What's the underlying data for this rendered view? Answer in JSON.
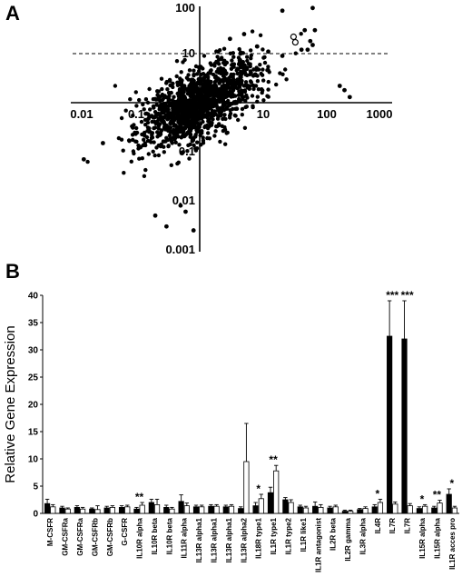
{
  "chart_data": [
    {
      "panel": "A",
      "type": "scatter",
      "scale": "log-log",
      "xlim": [
        0.01,
        1000
      ],
      "ylim": [
        0.001,
        100
      ],
      "x_ticks": [
        "0.01",
        "0.1",
        "1",
        "10",
        "100",
        "1000"
      ],
      "y_ticks": [
        "100",
        "10",
        "1",
        "0.1",
        "0.01",
        "0.001"
      ],
      "threshold_y": 10,
      "threshold_style": "dashed",
      "bulk_cloud": {
        "center": [
          1,
          1
        ],
        "spread_log10": 0.45,
        "correlation": 0.6,
        "approx_points": 1400
      },
      "highlighted_points": [
        {
          "x": 20,
          "y": 75,
          "marker": "filled"
        },
        {
          "x": 60,
          "y": 85,
          "marker": "filled"
        },
        {
          "x": 30,
          "y": 22,
          "marker": "open"
        },
        {
          "x": 32,
          "y": 17,
          "marker": "open"
        },
        {
          "x": 45,
          "y": 30,
          "marker": "filled"
        },
        {
          "x": 55,
          "y": 18,
          "marker": "filled"
        },
        {
          "x": 65,
          "y": 30,
          "marker": "filled"
        },
        {
          "x": 40,
          "y": 12,
          "marker": "filled"
        },
        {
          "x": 50,
          "y": 12,
          "marker": "filled"
        },
        {
          "x": 60,
          "y": 15,
          "marker": "filled"
        },
        {
          "x": 160,
          "y": 2.2,
          "marker": "filled"
        },
        {
          "x": 190,
          "y": 1.8,
          "marker": "filled"
        },
        {
          "x": 230,
          "y": 1.3,
          "marker": "filled"
        },
        {
          "x": 20,
          "y": 9,
          "marker": "filled"
        },
        {
          "x": 12,
          "y": 11,
          "marker": "filled"
        },
        {
          "x": 8,
          "y": 14,
          "marker": "filled"
        },
        {
          "x": 5,
          "y": 25,
          "marker": "filled"
        },
        {
          "x": 3,
          "y": 20,
          "marker": "filled"
        },
        {
          "x": 0.3,
          "y": 0.003,
          "marker": "filled"
        },
        {
          "x": 0.2,
          "y": 0.005,
          "marker": "filled"
        },
        {
          "x": 0.5,
          "y": 0.008,
          "marker": "filled"
        },
        {
          "x": 0.8,
          "y": 0.0025,
          "marker": "filled"
        },
        {
          "x": 0.6,
          "y": 0.006,
          "marker": "filled"
        },
        {
          "x": 0.015,
          "y": 0.07,
          "marker": "filled"
        },
        {
          "x": 0.03,
          "y": 0.15,
          "marker": "filled"
        }
      ]
    },
    {
      "panel": "B",
      "type": "bar",
      "ylabel": "Relative Gene Expression",
      "ylim": [
        0,
        40
      ],
      "yticks": [
        "0",
        "5",
        "10",
        "15",
        "20",
        "25",
        "30",
        "35",
        "40"
      ],
      "categories": [
        "M-CSFR",
        "GM-CSFRa",
        "GM-CSFRa",
        "GM-CSFRb",
        "GM-CSFRb",
        "G-CSFR",
        "IL10R alpha",
        "IL10R beta",
        "IL10R beta",
        "IL11R alpha",
        "IL13R alpha1",
        "IL13R alpha1",
        "IL13R alpha1",
        "IL13R alpha2",
        "IL18R type1",
        "IL1R type1",
        "IL1R type2",
        "IL1R like1",
        "IL1R antagonist",
        "IL2R beta",
        "IL2R gamma",
        "IL3R alpha",
        "IL4R",
        "IL7R",
        "IL7R",
        "IL15R alpha",
        "IL15R alpha",
        "IL1R acces pro"
      ],
      "series": [
        {
          "fill": "#000000",
          "values": [
            1.8,
            1.0,
            1.1,
            0.8,
            1.0,
            1.1,
            0.8,
            2.0,
            1.1,
            2.2,
            1.2,
            1.3,
            1.2,
            0.9,
            1.4,
            3.8,
            2.5,
            1.2,
            1.3,
            1.0,
            0.4,
            0.7,
            1.2,
            32.5,
            32.0,
            0.9,
            1.0,
            3.5
          ],
          "errors": [
            0.8,
            0.3,
            0.3,
            0.2,
            0.3,
            0.3,
            0.3,
            0.6,
            0.4,
            1.2,
            0.3,
            0.3,
            0.3,
            0.3,
            0.6,
            1.0,
            0.4,
            0.3,
            0.8,
            0.3,
            0.2,
            0.2,
            0.4,
            6.5,
            7.0,
            0.3,
            0.3,
            1.0
          ]
        },
        {
          "fill": "#ffffff",
          "values": [
            1.2,
            0.8,
            0.8,
            0.7,
            1.1,
            1.2,
            1.5,
            1.6,
            0.8,
            1.4,
            1.2,
            1.3,
            1.3,
            9.5,
            2.7,
            7.8,
            2.0,
            1.0,
            1.1,
            1.2,
            0.4,
            0.9,
            2.0,
            1.7,
            1.4,
            1.3,
            1.9,
            1.0
          ],
          "errors": [
            0.4,
            0.2,
            0.3,
            0.7,
            0.3,
            0.3,
            0.5,
            1.0,
            0.3,
            0.5,
            0.3,
            0.3,
            0.3,
            7.0,
            0.8,
            1.0,
            0.5,
            0.3,
            0.5,
            0.3,
            0.2,
            0.3,
            0.6,
            0.4,
            0.4,
            0.3,
            0.5,
            0.3
          ]
        }
      ],
      "annotations": [
        {
          "index": 6,
          "text": "**"
        },
        {
          "index": 14,
          "text": "*"
        },
        {
          "index": 15,
          "text": "**"
        },
        {
          "index": 22,
          "text": "*"
        },
        {
          "index": 23,
          "text": "***"
        },
        {
          "index": 24,
          "text": "***"
        },
        {
          "index": 25,
          "text": "*"
        },
        {
          "index": 26,
          "text": "**"
        },
        {
          "index": 27,
          "text": "*"
        }
      ]
    }
  ],
  "labels": {
    "panel_a": "A",
    "panel_b": "B"
  }
}
